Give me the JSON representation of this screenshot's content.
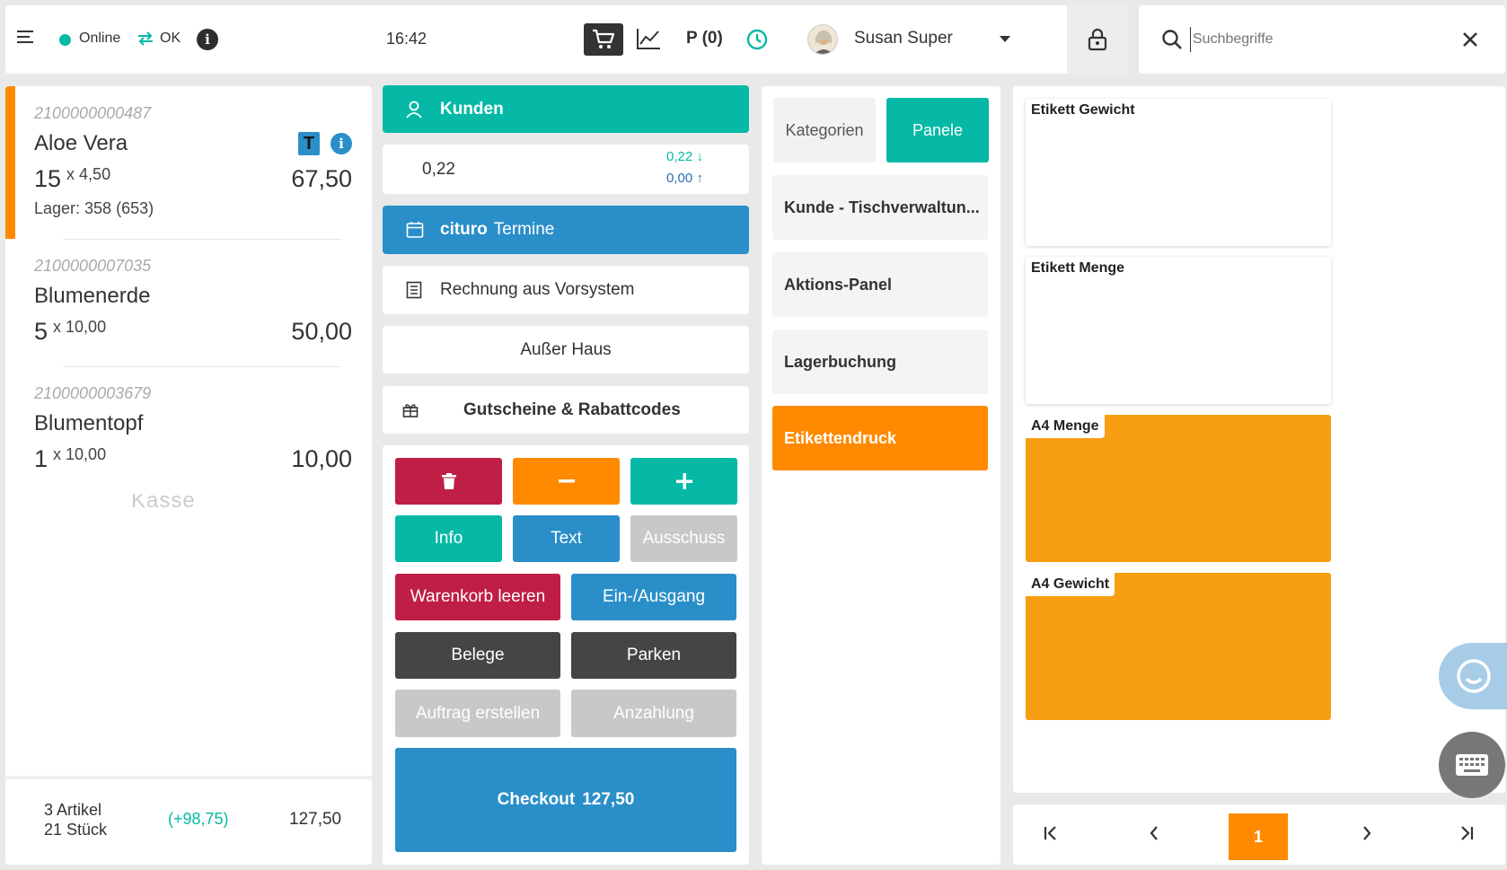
{
  "topbar": {
    "status_online": "Online",
    "status_sync": "OK",
    "time": "16:42",
    "parked": "P (0)",
    "user_name": "Susan Super"
  },
  "search": {
    "placeholder": "Suchbegriffe"
  },
  "cart": {
    "items": [
      {
        "barcode": "2100000000487",
        "name": "Aloe Vera",
        "qty": "15",
        "unit_price": "x 4,50",
        "total": "67,50",
        "stock": "Lager: 358 (653)",
        "badge": "T"
      },
      {
        "barcode": "2100000007035",
        "name": "Blumenerde",
        "qty": "5",
        "unit_price": "x 10,00",
        "total": "50,00"
      },
      {
        "barcode": "2100000003679",
        "name": "Blumentopf",
        "qty": "1",
        "unit_price": "x 10,00",
        "total": "10,00"
      }
    ],
    "ghost_text": "Kasse",
    "summary": {
      "articles": "3 Artikel",
      "pieces": "21 Stück",
      "diff": "(+98,75)",
      "total": "127,50"
    }
  },
  "actions": {
    "customers": "Kunden",
    "balance_value": "0,22",
    "balance_in": "0,22",
    "balance_out": "0,00",
    "cituro_brand": "cituro",
    "cituro_label": "Termine",
    "invoice": "Rechnung aus Vorsystem",
    "takeaway": "Außer Haus",
    "vouchers": "Gutscheine & Rabattcodes",
    "info": "Info",
    "text": "Text",
    "waste": "Ausschuss",
    "clear_cart": "Warenkorb leeren",
    "in_out": "Ein-/Ausgang",
    "receipts": "Belege",
    "park": "Parken",
    "create_order": "Auftrag erstellen",
    "deposit": "Anzahlung",
    "checkout_label": "Checkout",
    "checkout_amount": "127,50"
  },
  "panels": {
    "tab_categories": "Kategorien",
    "tab_panels": "Panele",
    "items": [
      "Kunde - Tischverwaltun...",
      "Aktions-Panel",
      "Lagerbuchung",
      "Etikettendruck"
    ]
  },
  "tiles": [
    "Etikett Gewicht",
    "Etikett Menge",
    "A4 Menge",
    "A4 Gewicht"
  ],
  "pager": {
    "current": "1"
  },
  "colors": {
    "teal": "#05b9a6",
    "blue": "#2a8fc9",
    "orange": "#ff8a00",
    "tile_orange": "#f89e12",
    "crimson": "#bf1e45",
    "dark": "#454545",
    "grey": "#c8c8c8"
  }
}
